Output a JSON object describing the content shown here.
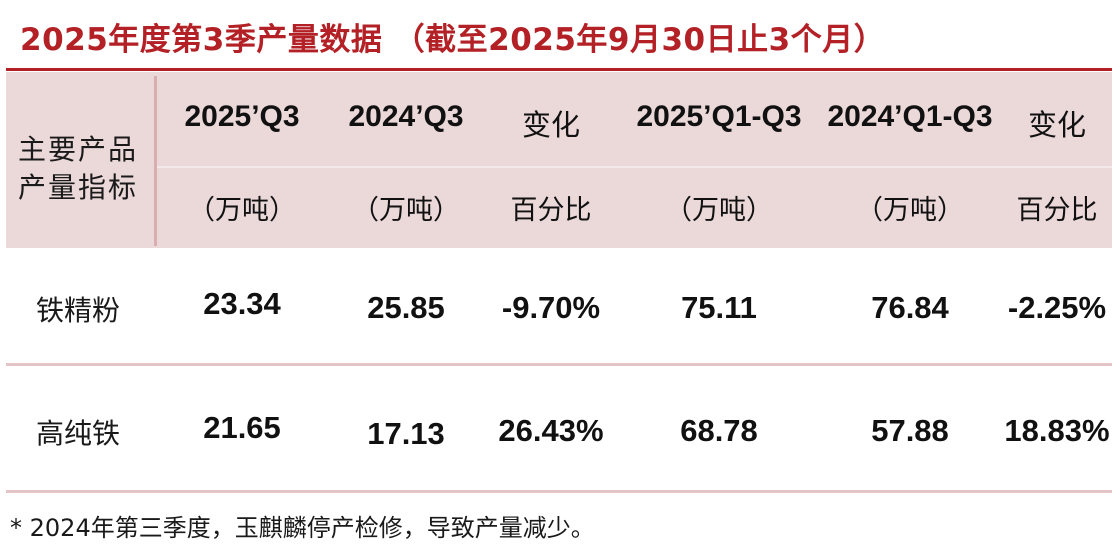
{
  "title": "2025年度第3季产量数据 （截至2025年9月30日止3个月）",
  "header": {
    "row_header_line1": "主要产品",
    "row_header_line2": "产量指标",
    "columns": [
      {
        "top": "2025’Q3",
        "bottom": "（万吨）"
      },
      {
        "top": "2024’Q3",
        "bottom": "（万吨）"
      },
      {
        "top": "变化",
        "bottom": "百分比"
      },
      {
        "top": "2025’Q1-Q3",
        "bottom": "（万吨）"
      },
      {
        "top": "2024’Q1-Q3",
        "bottom": "（万吨）"
      },
      {
        "top": "变化",
        "bottom": "百分比"
      }
    ]
  },
  "rows": [
    {
      "label": "铁精粉",
      "values": [
        "23.34",
        "25.85",
        "-9.70%",
        "75.11",
        "76.84",
        "-2.25%"
      ]
    },
    {
      "label": "高纯铁",
      "values": [
        "21.65",
        "17.13",
        "26.43%",
        "68.78",
        "57.88",
        "18.83%"
      ]
    }
  ],
  "footnote": "* 2024年第三季度，玉麒麟停产检修，导致产量减少。",
  "colors": {
    "accent": "#b32025",
    "header_bg": "#ebd8d9",
    "row_separator": "#e3c5c8"
  }
}
